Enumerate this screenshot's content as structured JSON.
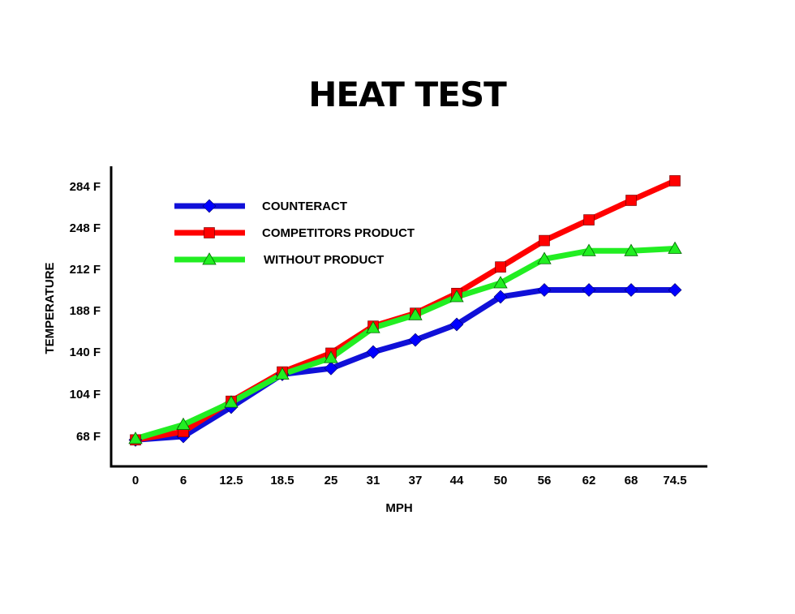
{
  "chart_data": {
    "type": "line",
    "title": "HEAT TEST",
    "xlabel": "MPH",
    "ylabel": "TEMPERATURE",
    "categories": [
      "0",
      "6",
      "12.5",
      "18.5",
      "25",
      "31",
      "37",
      "44",
      "50",
      "56",
      "62",
      "68",
      "74.5"
    ],
    "y_ticks": [
      "68 F",
      "104 F",
      "140 F",
      "188 F",
      "212 F",
      "248 F",
      "284 F"
    ],
    "legend_position": "top-left",
    "grid": false,
    "series": [
      {
        "name": "COUNTERACT",
        "color": "#1010d8",
        "marker": "diamond",
        "marker_color": "#0000ff",
        "values": [
          65,
          68,
          93,
          121,
          126,
          140,
          154,
          172,
          196,
          200,
          200,
          200,
          200
        ]
      },
      {
        "name": "COMPETITORS PRODUCT",
        "color": "#ff0000",
        "marker": "square",
        "marker_color": "#ff0000",
        "values": [
          65,
          72,
          98,
          123,
          139,
          170,
          185,
          198,
          214,
          237,
          255,
          272,
          289
        ]
      },
      {
        "name": "WITHOUT PRODUCT",
        "color": "#22ee22",
        "marker": "triangle",
        "marker_color": "#22ee22",
        "values": [
          66,
          78,
          97,
          121,
          135,
          168,
          183,
          196,
          204,
          221,
          228,
          228,
          230
        ]
      }
    ]
  }
}
